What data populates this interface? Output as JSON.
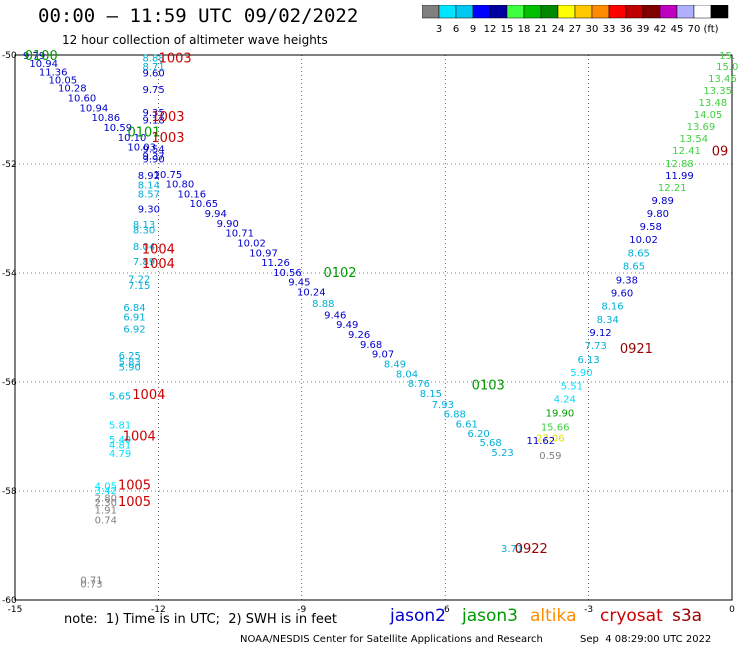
{
  "header": {
    "title": "00:00 – 11:59 UTC 09/02/2022",
    "subtitle": "12 hour collection of altimeter wave heights"
  },
  "legend_scale": {
    "colors": [
      "#808080",
      "#00e5ff",
      "#00c8f0",
      "#0000ff",
      "#0000a0",
      "#40ff40",
      "#00c000",
      "#008800",
      "#ffff00",
      "#ffc800",
      "#ff8c00",
      "#ff0000",
      "#c00000",
      "#800000",
      "#c000c0",
      "#b0b0ff",
      "#ffffff",
      "#000000"
    ],
    "labels": [
      "3",
      "6",
      "9",
      "12",
      "15",
      "18",
      "21",
      "24",
      "27",
      "30",
      "33",
      "36",
      "39",
      "42",
      "45",
      "70",
      "(ft)"
    ]
  },
  "note": "note:  1) Time is in UTC;  2) SWH is in feet",
  "satellites": [
    {
      "name": "jason2",
      "color": "#0000cc"
    },
    {
      "name": "jason3",
      "color": "#009900"
    },
    {
      "name": "altika",
      "color": "#ff8c00"
    },
    {
      "name": "cryosat",
      "color": "#cc0000"
    },
    {
      "name": "s3a",
      "color": "#990000"
    }
  ],
  "footer": {
    "credit": "NOAA/NESDIS Center for Satellite Applications and Research",
    "timestamp": "Sep  4 08:29:00 UTC 2022"
  },
  "chart_data": {
    "type": "scatter",
    "title": "00:00 – 11:59 UTC 09/02/2022",
    "subtitle": "12 hour collection of altimeter wave heights",
    "xlim": [
      -15,
      0
    ],
    "ylim": [
      -60,
      -50
    ],
    "x_ticks": [
      "-15",
      "-12",
      "-9",
      "-6",
      "-3",
      "0"
    ],
    "y_ticks": [
      "-50",
      "-52",
      "-54",
      "-56",
      "-58",
      "-60"
    ],
    "grid": true,
    "points": [
      {
        "x": -14.6,
        "y": -50.0,
        "v": "9.79",
        "c": "#0000cc"
      },
      {
        "x": -14.4,
        "y": -50.15,
        "v": "10.94",
        "c": "#0000cc"
      },
      {
        "x": -14.2,
        "y": -50.3,
        "v": "11.36",
        "c": "#0000cc"
      },
      {
        "x": -14.0,
        "y": -50.45,
        "v": "10.05",
        "c": "#0000cc"
      },
      {
        "x": -13.8,
        "y": -50.6,
        "v": "10.28",
        "c": "#0000cc"
      },
      {
        "x": -13.6,
        "y": -50.78,
        "v": "10.60",
        "c": "#0000cc"
      },
      {
        "x": -13.35,
        "y": -50.96,
        "v": "10.94",
        "c": "#0000cc"
      },
      {
        "x": -13.1,
        "y": -51.14,
        "v": "10.86",
        "c": "#0000cc"
      },
      {
        "x": -12.85,
        "y": -51.32,
        "v": "10.59",
        "c": "#0000cc"
      },
      {
        "x": -12.55,
        "y": -51.5,
        "v": "10.10",
        "c": "#0000cc"
      },
      {
        "x": -12.35,
        "y": -51.68,
        "v": "10.03",
        "c": "#0000cc"
      },
      {
        "x": -12.1,
        "y": -51.9,
        "v": "9.90",
        "c": "#0000cc"
      },
      {
        "x": -11.8,
        "y": -52.18,
        "v": "10.75",
        "c": "#0000cc"
      },
      {
        "x": -11.55,
        "y": -52.36,
        "v": "10.80",
        "c": "#0000cc"
      },
      {
        "x": -11.3,
        "y": -52.54,
        "v": "10.16",
        "c": "#0000cc"
      },
      {
        "x": -11.05,
        "y": -52.72,
        "v": "10.65",
        "c": "#0000cc"
      },
      {
        "x": -10.8,
        "y": -52.9,
        "v": "9.94",
        "c": "#0000cc"
      },
      {
        "x": -10.55,
        "y": -53.08,
        "v": "9.90",
        "c": "#0000cc"
      },
      {
        "x": -10.3,
        "y": -53.26,
        "v": "10.71",
        "c": "#0000cc"
      },
      {
        "x": -10.05,
        "y": -53.44,
        "v": "10.02",
        "c": "#0000cc"
      },
      {
        "x": -9.8,
        "y": -53.62,
        "v": "10.97",
        "c": "#0000cc"
      },
      {
        "x": -9.55,
        "y": -53.8,
        "v": "11.26",
        "c": "#0000cc"
      },
      {
        "x": -9.3,
        "y": -53.98,
        "v": "10.56",
        "c": "#0000cc"
      },
      {
        "x": -9.05,
        "y": -54.16,
        "v": "9.45",
        "c": "#0000cc"
      },
      {
        "x": -8.8,
        "y": -54.34,
        "v": "10.24",
        "c": "#0000cc"
      },
      {
        "x": -8.55,
        "y": -54.55,
        "v": "8.88",
        "c": "#00b0d8"
      },
      {
        "x": -8.3,
        "y": -54.76,
        "v": "9.46",
        "c": "#0000cc"
      },
      {
        "x": -8.05,
        "y": -54.94,
        "v": "9.49",
        "c": "#0000cc"
      },
      {
        "x": -7.8,
        "y": -55.12,
        "v": "9.26",
        "c": "#0000cc"
      },
      {
        "x": -7.55,
        "y": -55.3,
        "v": "9.68",
        "c": "#0000cc"
      },
      {
        "x": -7.3,
        "y": -55.48,
        "v": "9.07",
        "c": "#0000cc"
      },
      {
        "x": -7.05,
        "y": -55.66,
        "v": "8.49",
        "c": "#00b0d8"
      },
      {
        "x": -6.8,
        "y": -55.84,
        "v": "8.04",
        "c": "#00b0d8"
      },
      {
        "x": -6.55,
        "y": -56.02,
        "v": "8.76",
        "c": "#00b0d8"
      },
      {
        "x": -6.3,
        "y": -56.2,
        "v": "8.15",
        "c": "#00b0d8"
      },
      {
        "x": -6.05,
        "y": -56.4,
        "v": "7.93",
        "c": "#00b0d8"
      },
      {
        "x": -5.8,
        "y": -56.58,
        "v": "6.88",
        "c": "#00b0d8"
      },
      {
        "x": -5.55,
        "y": -56.76,
        "v": "6.61",
        "c": "#00b0d8"
      },
      {
        "x": -5.3,
        "y": -56.94,
        "v": "6.20",
        "c": "#00b0d8"
      },
      {
        "x": -5.05,
        "y": -57.1,
        "v": "5.68",
        "c": "#00b0d8"
      },
      {
        "x": -4.8,
        "y": -57.28,
        "v": "5.23",
        "c": "#00b0d8"
      },
      {
        "x": -12.1,
        "y": -50.05,
        "v": "8.88",
        "c": "#00b0d8"
      },
      {
        "x": -12.1,
        "y": -50.2,
        "v": "8.71",
        "c": "#00b0d8"
      },
      {
        "x": -12.1,
        "y": -50.32,
        "v": "9.60",
        "c": "#0000cc"
      },
      {
        "x": -12.1,
        "y": -50.62,
        "v": "9.75",
        "c": "#0000cc"
      },
      {
        "x": -12.1,
        "y": -51.05,
        "v": "9.35",
        "c": "#0000cc"
      },
      {
        "x": -12.1,
        "y": -51.18,
        "v": "9.18",
        "c": "#0000cc"
      },
      {
        "x": -12.1,
        "y": -51.72,
        "v": "9.54",
        "c": "#0000cc"
      },
      {
        "x": -12.1,
        "y": -51.84,
        "v": "9.37",
        "c": "#0000cc"
      },
      {
        "x": -12.2,
        "y": -52.2,
        "v": "8.92",
        "c": "#0000cc"
      },
      {
        "x": -12.2,
        "y": -52.38,
        "v": "8.14",
        "c": "#00b0d8"
      },
      {
        "x": -12.2,
        "y": -52.54,
        "v": "8.57",
        "c": "#00b0d8"
      },
      {
        "x": -12.2,
        "y": -52.82,
        "v": "9.30",
        "c": "#0000cc"
      },
      {
        "x": -12.3,
        "y": -53.1,
        "v": "8.13",
        "c": "#00b0d8"
      },
      {
        "x": -12.3,
        "y": -53.2,
        "v": "8.30",
        "c": "#00b0d8"
      },
      {
        "x": -12.3,
        "y": -53.5,
        "v": "8.04",
        "c": "#00b0d8"
      },
      {
        "x": -12.3,
        "y": -53.78,
        "v": "7.89",
        "c": "#00b0d8"
      },
      {
        "x": -12.4,
        "y": -54.1,
        "v": "7.22",
        "c": "#00b0d8"
      },
      {
        "x": -12.4,
        "y": -54.22,
        "v": "7.15",
        "c": "#00b0d8"
      },
      {
        "x": -12.5,
        "y": -54.62,
        "v": "6.84",
        "c": "#00b0d8"
      },
      {
        "x": -12.5,
        "y": -54.8,
        "v": "6.91",
        "c": "#00b0d8"
      },
      {
        "x": -12.5,
        "y": -55.02,
        "v": "6.92",
        "c": "#00b0d8"
      },
      {
        "x": -12.6,
        "y": -55.5,
        "v": "6.25",
        "c": "#00b0d8"
      },
      {
        "x": -12.6,
        "y": -55.62,
        "v": "5.83",
        "c": "#00b0d8"
      },
      {
        "x": -12.6,
        "y": -55.72,
        "v": "5.90",
        "c": "#00b0d8"
      },
      {
        "x": -12.8,
        "y": -56.25,
        "v": "5.65",
        "c": "#00b0d8"
      },
      {
        "x": -12.8,
        "y": -56.78,
        "v": "5.81",
        "c": "#00e0ff"
      },
      {
        "x": -12.8,
        "y": -57.05,
        "v": "5.40",
        "c": "#00e0ff"
      },
      {
        "x": -12.8,
        "y": -57.15,
        "v": "4.81",
        "c": "#00e0ff"
      },
      {
        "x": -12.8,
        "y": -57.3,
        "v": "4.79",
        "c": "#00e0ff"
      },
      {
        "x": -13.1,
        "y": -57.9,
        "v": "4.05",
        "c": "#00e0ff"
      },
      {
        "x": -13.1,
        "y": -57.98,
        "v": "3.42",
        "c": "#00e0ff"
      },
      {
        "x": -13.1,
        "y": -58.12,
        "v": "2.80",
        "c": "#808080"
      },
      {
        "x": -13.1,
        "y": -58.2,
        "v": "2.30",
        "c": "#808080"
      },
      {
        "x": -13.1,
        "y": -58.34,
        "v": "1.91",
        "c": "#808080"
      },
      {
        "x": -13.1,
        "y": -58.52,
        "v": "0.74",
        "c": "#808080"
      },
      {
        "x": -13.4,
        "y": -59.62,
        "v": "0.71",
        "c": "#808080"
      },
      {
        "x": -13.4,
        "y": -59.7,
        "v": "0.73",
        "c": "#808080"
      },
      {
        "x": -0.1,
        "y": -50.0,
        "v": "15.",
        "c": "#40d040"
      },
      {
        "x": -0.1,
        "y": -50.2,
        "v": "15.0",
        "c": "#40d040"
      },
      {
        "x": -0.2,
        "y": -50.42,
        "v": "13.46",
        "c": "#40d040"
      },
      {
        "x": -0.3,
        "y": -50.64,
        "v": "13.35",
        "c": "#40d040"
      },
      {
        "x": -0.4,
        "y": -50.86,
        "v": "13.48",
        "c": "#40d040"
      },
      {
        "x": -0.5,
        "y": -51.08,
        "v": "14.05",
        "c": "#40d040"
      },
      {
        "x": -0.65,
        "y": -51.3,
        "v": "13.69",
        "c": "#40d040"
      },
      {
        "x": -0.8,
        "y": -51.52,
        "v": "13.54",
        "c": "#40d040"
      },
      {
        "x": -0.95,
        "y": -51.74,
        "v": "12.41",
        "c": "#40d040"
      },
      {
        "x": -1.1,
        "y": -51.98,
        "v": "12.88",
        "c": "#40d040"
      },
      {
        "x": -1.1,
        "y": -52.2,
        "v": "11.99",
        "c": "#0000cc"
      },
      {
        "x": -1.25,
        "y": -52.42,
        "v": "12.21",
        "c": "#40d040"
      },
      {
        "x": -1.45,
        "y": -52.66,
        "v": "9.89",
        "c": "#0000cc"
      },
      {
        "x": -1.55,
        "y": -52.9,
        "v": "9.80",
        "c": "#0000cc"
      },
      {
        "x": -1.7,
        "y": -53.14,
        "v": "9.58",
        "c": "#0000cc"
      },
      {
        "x": -1.85,
        "y": -53.38,
        "v": "10.02",
        "c": "#0000cc"
      },
      {
        "x": -1.95,
        "y": -53.62,
        "v": "8.65",
        "c": "#00b0d8"
      },
      {
        "x": -2.05,
        "y": -53.86,
        "v": "8.65",
        "c": "#00b0d8"
      },
      {
        "x": -2.2,
        "y": -54.12,
        "v": "9.38",
        "c": "#0000cc"
      },
      {
        "x": -2.3,
        "y": -54.36,
        "v": "9.60",
        "c": "#0000cc"
      },
      {
        "x": -2.5,
        "y": -54.6,
        "v": "8.16",
        "c": "#00b0d8"
      },
      {
        "x": -2.6,
        "y": -54.84,
        "v": "8.34",
        "c": "#00b0d8"
      },
      {
        "x": -2.75,
        "y": -55.08,
        "v": "9.12",
        "c": "#0000cc"
      },
      {
        "x": -2.85,
        "y": -55.32,
        "v": "7.73",
        "c": "#00b0d8"
      },
      {
        "x": -3.0,
        "y": -55.58,
        "v": "6.13",
        "c": "#00b0d8"
      },
      {
        "x": -3.15,
        "y": -55.82,
        "v": "5.90",
        "c": "#00e0ff"
      },
      {
        "x": -3.35,
        "y": -56.06,
        "v": "5.51",
        "c": "#00e0ff"
      },
      {
        "x": -3.5,
        "y": -56.3,
        "v": "4.24",
        "c": "#00e0ff"
      },
      {
        "x": -3.6,
        "y": -56.56,
        "v": "19.90",
        "c": "#009900"
      },
      {
        "x": -3.7,
        "y": -56.82,
        "v": "15.66",
        "c": "#40d040"
      },
      {
        "x": -3.8,
        "y": -57.02,
        "v": "27.06",
        "c": "#e0e000"
      },
      {
        "x": -4.0,
        "y": -57.06,
        "v": "11.62",
        "c": "#0000cc"
      },
      {
        "x": -3.8,
        "y": -57.34,
        "v": "0.59",
        "c": "#808080"
      },
      {
        "x": -4.6,
        "y": -59.05,
        "v": "3.71",
        "c": "#00b0d8"
      }
    ],
    "labels": [
      {
        "x": -14.45,
        "y": -50.0,
        "t": "0100",
        "c": "#009900"
      },
      {
        "x": -11.65,
        "y": -50.05,
        "t": "1003",
        "c": "#cc0000"
      },
      {
        "x": -11.8,
        "y": -51.12,
        "t": "1003",
        "c": "#cc0000"
      },
      {
        "x": -12.3,
        "y": -51.4,
        "t": "0101",
        "c": "#009900"
      },
      {
        "x": -11.8,
        "y": -51.5,
        "t": "1003",
        "c": "#cc0000"
      },
      {
        "x": -12.0,
        "y": -53.55,
        "t": "1004",
        "c": "#cc0000"
      },
      {
        "x": -12.0,
        "y": -53.82,
        "t": "1004",
        "c": "#cc0000"
      },
      {
        "x": -8.2,
        "y": -53.98,
        "t": "0102",
        "c": "#009900"
      },
      {
        "x": -5.1,
        "y": -56.05,
        "t": "0103",
        "c": "#009900"
      },
      {
        "x": -12.2,
        "y": -56.22,
        "t": "1004",
        "c": "#cc0000"
      },
      {
        "x": -12.4,
        "y": -56.98,
        "t": "1004",
        "c": "#cc0000"
      },
      {
        "x": -12.5,
        "y": -57.88,
        "t": "1005",
        "c": "#cc0000"
      },
      {
        "x": -12.5,
        "y": -58.18,
        "t": "1005",
        "c": "#cc0000"
      },
      {
        "x": -2.0,
        "y": -55.38,
        "t": "0921",
        "c": "#990000"
      },
      {
        "x": -4.2,
        "y": -59.05,
        "t": "0922",
        "c": "#990000"
      },
      {
        "x": -0.25,
        "y": -51.75,
        "t": "09",
        "c": "#990000"
      }
    ],
    "legend": [
      "jason2",
      "jason3",
      "altika",
      "cryosat",
      "s3a"
    ]
  }
}
